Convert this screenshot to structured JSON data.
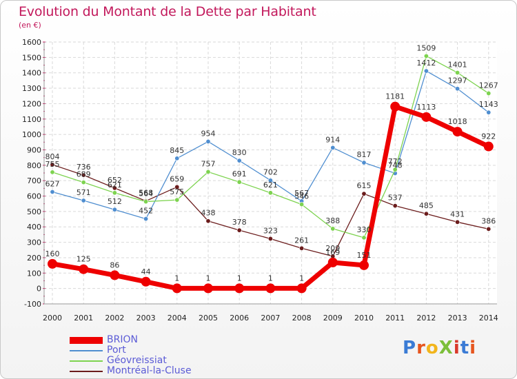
{
  "header": {
    "title": "Evolution du Montant de la Dette par Habitant",
    "subtitle": "(en €)"
  },
  "logo": {
    "text": "ProXiti",
    "colors": [
      "#3a7bd5",
      "#e6551e",
      "#f2b51c",
      "#7cbf3a",
      "#d9392b",
      "#3a7bd5",
      "#e6551e"
    ]
  },
  "chart_data": {
    "type": "line",
    "title": "Evolution du Montant de la Dette par Habitant",
    "subtitle": "(en €)",
    "xlabel": "",
    "ylabel": "",
    "x": [
      2000,
      2001,
      2002,
      2003,
      2004,
      2005,
      2006,
      2007,
      2008,
      2009,
      2010,
      2011,
      2012,
      2013,
      2014
    ],
    "ylim": [
      -100,
      1600
    ],
    "yticks": [
      -100,
      0,
      100,
      200,
      300,
      400,
      500,
      600,
      700,
      800,
      900,
      1000,
      1100,
      1200,
      1300,
      1400,
      1500,
      1600
    ],
    "grid": true,
    "legend_position": "bottom-left",
    "series": [
      {
        "name": "BRION",
        "color": "#ee0000",
        "values": [
          160,
          125,
          86,
          44,
          1,
          1,
          1,
          1,
          1,
          169,
          151,
          1181,
          1113,
          1018,
          922
        ]
      },
      {
        "name": "Port",
        "color": "#4f8ed0",
        "values": [
          627,
          571,
          512,
          452,
          845,
          954,
          830,
          702,
          567,
          914,
          817,
          748,
          1412,
          1297,
          1143
        ]
      },
      {
        "name": "Géovreissiat",
        "color": "#7dd34f",
        "values": [
          755,
          689,
          621,
          564,
          575,
          757,
          691,
          621,
          546,
          388,
          330,
          772,
          1509,
          1401,
          1267
        ]
      },
      {
        "name": "Montréal-la-Cluse",
        "color": "#6b1c1c",
        "values": [
          804,
          736,
          652,
          568,
          659,
          438,
          378,
          323,
          261,
          209,
          615,
          537,
          485,
          431,
          386
        ]
      }
    ]
  }
}
